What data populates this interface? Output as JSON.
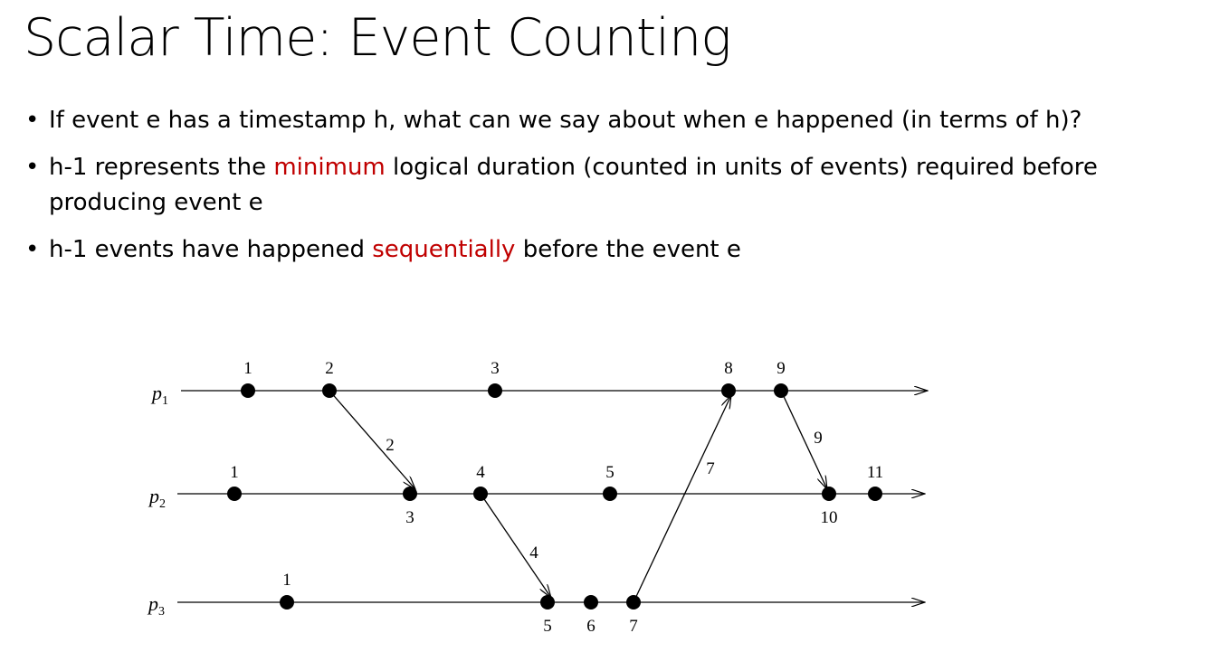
{
  "title": "Scalar Time: Event Counting",
  "bullets": [
    {
      "before": "If event e has a timestamp h, what can we say about when e happened (in terms of h)?",
      "highlight": "",
      "after": ""
    },
    {
      "before": "h-1 represents the ",
      "highlight": "minimum",
      "after": " logical duration (counted in units of events) required before producing event e"
    },
    {
      "before": "h-1 events have happened ",
      "highlight": "sequentially",
      "after": " before the event e"
    }
  ],
  "colors": {
    "highlight": "#c00000",
    "text": "#000000"
  },
  "diagram": {
    "processes": [
      {
        "label": "p",
        "sub": "1",
        "events": [
          "1",
          "2",
          "3",
          "8",
          "9"
        ]
      },
      {
        "label": "p",
        "sub": "2",
        "events": [
          "1",
          "3",
          "4",
          "5",
          "10",
          "11"
        ]
      },
      {
        "label": "p",
        "sub": "3",
        "events": [
          "1",
          "5",
          "6",
          "7"
        ]
      }
    ],
    "messages": [
      {
        "from_process": 1,
        "from_event": "2",
        "to_process": 2,
        "to_event": "3",
        "label": "2"
      },
      {
        "from_process": 2,
        "from_event": "4",
        "to_process": 3,
        "to_event": "5",
        "label": "4"
      },
      {
        "from_process": 3,
        "from_event": "7",
        "to_process": 1,
        "to_event": "8",
        "label": "7"
      },
      {
        "from_process": 1,
        "from_event": "9",
        "to_process": 2,
        "to_event": "10",
        "label": "9"
      }
    ]
  }
}
